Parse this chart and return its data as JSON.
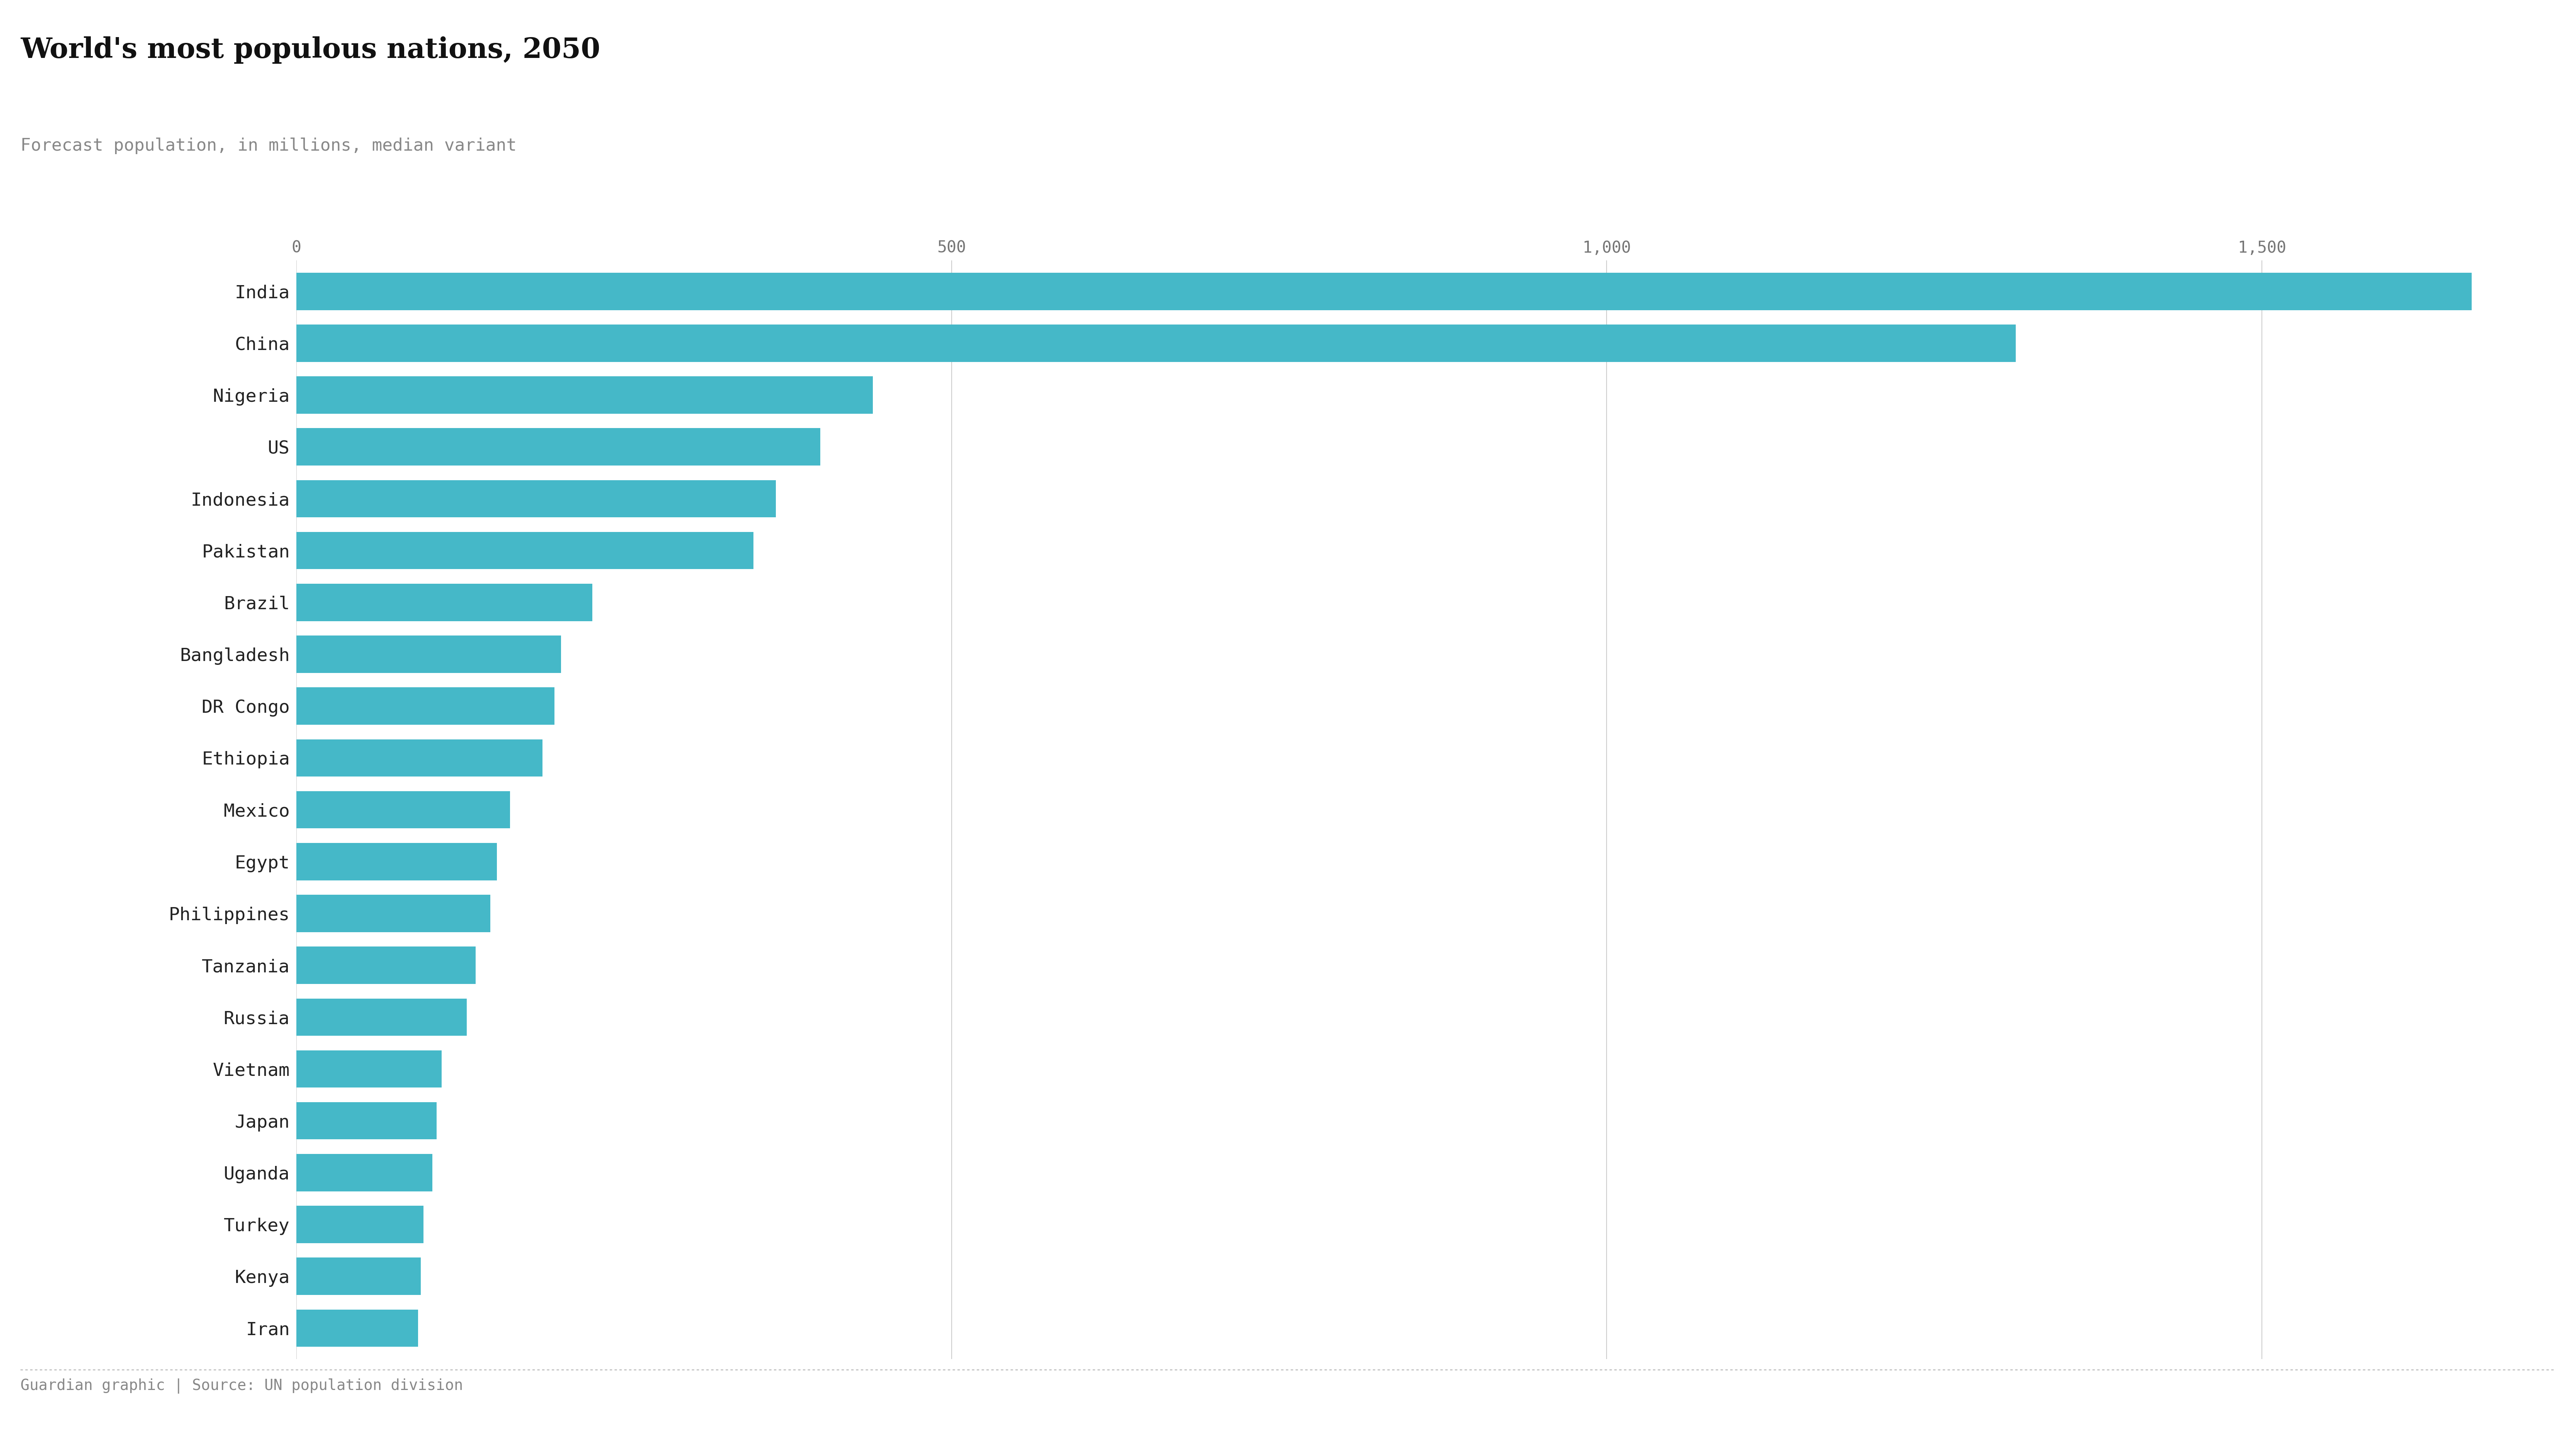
{
  "title": "World's most populous nations, 2050",
  "subtitle": "Forecast population, in millions, median variant",
  "footer": "Guardian graphic | Source: UN population division",
  "bar_color": "#45b8c8",
  "background_color": "#ffffff",
  "countries": [
    "India",
    "China",
    "Nigeria",
    "US",
    "Indonesia",
    "Pakistan",
    "Brazil",
    "Bangladesh",
    "DR Congo",
    "Ethiopia",
    "Mexico",
    "Egypt",
    "Philippines",
    "Tanzania",
    "Russia",
    "Vietnam",
    "Japan",
    "Uganda",
    "Turkey",
    "Kenya",
    "Iran"
  ],
  "values": [
    1660,
    1312,
    440,
    400,
    366,
    349,
    226,
    202,
    197,
    188,
    163,
    153,
    148,
    137,
    130,
    111,
    107,
    104,
    97,
    95,
    93
  ],
  "xlim": [
    0,
    1720
  ],
  "xticks": [
    0,
    500,
    1000,
    1500
  ],
  "xtick_labels": [
    "0",
    "500",
    "1,000",
    "1,500"
  ],
  "title_fontsize": 52,
  "subtitle_fontsize": 32,
  "tick_fontsize": 30,
  "label_fontsize": 34,
  "footer_fontsize": 28,
  "bar_height": 0.72
}
